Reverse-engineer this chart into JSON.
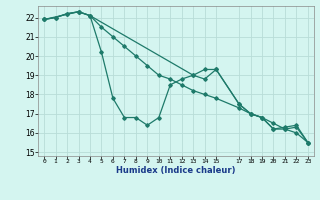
{
  "xlabel": "Humidex (Indice chaleur)",
  "background_color": "#d4f5f0",
  "grid_color": "#b8ddd8",
  "line_color": "#1e7a6a",
  "xlim": [
    -0.5,
    23.5
  ],
  "ylim": [
    14.8,
    22.6
  ],
  "yticks": [
    15,
    16,
    17,
    18,
    19,
    20,
    21,
    22
  ],
  "xtick_positions": [
    0,
    1,
    2,
    3,
    4,
    5,
    6,
    7,
    8,
    9,
    10,
    11,
    12,
    13,
    14,
    15,
    17,
    18,
    19,
    20,
    21,
    22,
    23
  ],
  "xtick_labels": [
    "0",
    "1",
    "2",
    "3",
    "4",
    "5",
    "6",
    "7",
    "8",
    "9",
    "10",
    "11",
    "12",
    "13",
    "14",
    "15",
    "17",
    "18",
    "19",
    "20",
    "21",
    "22",
    "23"
  ],
  "series1_x": [
    0,
    1,
    2,
    3,
    4,
    5,
    6,
    7,
    8,
    9,
    10,
    11,
    12,
    13,
    14,
    15,
    17,
    18,
    19,
    20,
    21,
    22,
    23
  ],
  "series1_y": [
    21.9,
    22.0,
    22.2,
    22.3,
    22.1,
    20.2,
    17.8,
    16.8,
    16.8,
    16.4,
    16.8,
    18.5,
    18.8,
    19.0,
    18.8,
    19.3,
    17.5,
    17.0,
    16.8,
    16.2,
    16.2,
    16.3,
    15.5
  ],
  "series2_x": [
    0,
    1,
    2,
    3,
    4,
    5,
    6,
    7,
    8,
    9,
    10,
    11,
    12,
    13,
    14,
    15,
    17,
    18,
    19,
    20,
    21,
    22,
    23
  ],
  "series2_y": [
    21.9,
    22.0,
    22.2,
    22.3,
    22.1,
    21.5,
    21.0,
    20.5,
    20.0,
    19.5,
    19.0,
    18.8,
    18.5,
    18.2,
    18.0,
    17.8,
    17.3,
    17.0,
    16.8,
    16.5,
    16.2,
    16.0,
    15.5
  ],
  "series3_x": [
    0,
    3,
    4,
    13,
    14,
    15,
    17,
    18,
    19,
    20,
    21,
    22,
    23
  ],
  "series3_y": [
    21.9,
    22.3,
    22.1,
    19.0,
    19.3,
    19.3,
    17.5,
    17.0,
    16.8,
    16.2,
    16.3,
    16.4,
    15.5
  ]
}
